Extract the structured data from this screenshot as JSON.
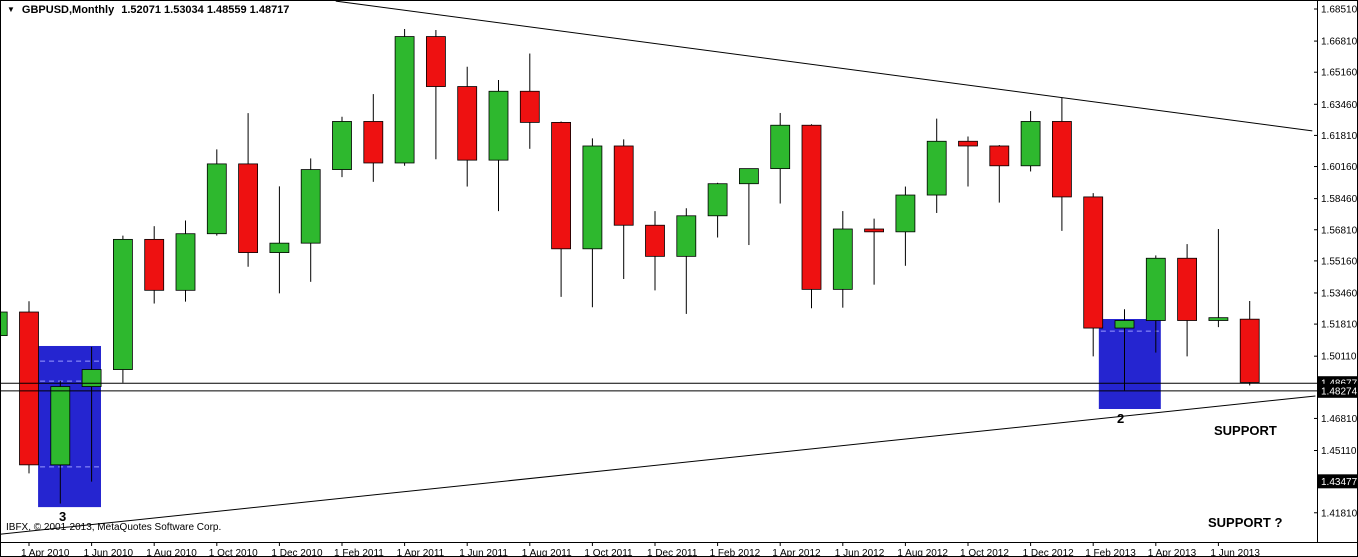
{
  "window": {
    "marker_glyph": "▼",
    "symbol": "GBPUSD,Monthly",
    "quote_ohlc": "1.52071 1.53034 1.48559 1.48717",
    "copyright": "IBFX, © 2001-2013, MetaQuotes Software Corp."
  },
  "chart_data": {
    "type": "candlestick",
    "symbol": "GBPUSD",
    "timeframe": "Monthly",
    "current_bar": {
      "open": 1.52071,
      "high": 1.53034,
      "low": 1.48559,
      "close": 1.48717
    },
    "colors": {
      "up": "#2eb82e",
      "down": "#ee1111",
      "box": "#2525d0",
      "box_dash": "#9b9bff",
      "wick": "#000000",
      "line": "#000000",
      "axis_text": "#000000",
      "tag_bg": "#000000",
      "tag_text": "#ffffff"
    },
    "candles": [
      {
        "month": "2010-03",
        "o": 1.512,
        "h": 1.528,
        "l": 1.508,
        "c": 1.5245
      },
      {
        "month": "2010-04",
        "o": 1.5245,
        "h": 1.5302,
        "l": 1.439,
        "c": 1.4435
      },
      {
        "month": "2010-05",
        "o": 1.4435,
        "h": 1.488,
        "l": 1.423,
        "c": 1.485
      },
      {
        "month": "2010-06",
        "o": 1.485,
        "h": 1.506,
        "l": 1.4346,
        "c": 1.494
      },
      {
        "month": "2010-07",
        "o": 1.494,
        "h": 1.565,
        "l": 1.487,
        "c": 1.563
      },
      {
        "month": "2010-08",
        "o": 1.563,
        "h": 1.57,
        "l": 1.529,
        "c": 1.536
      },
      {
        "month": "2010-09",
        "o": 1.536,
        "h": 1.573,
        "l": 1.53,
        "c": 1.566
      },
      {
        "month": "2010-10",
        "o": 1.566,
        "h": 1.6107,
        "l": 1.565,
        "c": 1.603
      },
      {
        "month": "2010-11",
        "o": 1.603,
        "h": 1.6299,
        "l": 1.5485,
        "c": 1.556
      },
      {
        "month": "2010-12",
        "o": 1.556,
        "h": 1.5911,
        "l": 1.5344,
        "c": 1.561
      },
      {
        "month": "2011-01",
        "o": 1.561,
        "h": 1.6059,
        "l": 1.5405,
        "c": 1.6
      },
      {
        "month": "2011-02",
        "o": 1.6,
        "h": 1.628,
        "l": 1.596,
        "c": 1.6255
      },
      {
        "month": "2011-03",
        "o": 1.6255,
        "h": 1.64,
        "l": 1.5935,
        "c": 1.6035
      },
      {
        "month": "2011-04",
        "o": 1.6035,
        "h": 1.6745,
        "l": 1.602,
        "c": 1.6705
      },
      {
        "month": "2011-05",
        "o": 1.6705,
        "h": 1.674,
        "l": 1.6055,
        "c": 1.644
      },
      {
        "month": "2011-06",
        "o": 1.644,
        "h": 1.6545,
        "l": 1.591,
        "c": 1.605
      },
      {
        "month": "2011-07",
        "o": 1.605,
        "h": 1.6475,
        "l": 1.578,
        "c": 1.6415
      },
      {
        "month": "2011-08",
        "o": 1.6415,
        "h": 1.6615,
        "l": 1.611,
        "c": 1.625
      },
      {
        "month": "2011-09",
        "o": 1.625,
        "h": 1.6255,
        "l": 1.5325,
        "c": 1.558
      },
      {
        "month": "2011-10",
        "o": 1.558,
        "h": 1.6165,
        "l": 1.527,
        "c": 1.6125
      },
      {
        "month": "2011-11",
        "o": 1.6125,
        "h": 1.616,
        "l": 1.542,
        "c": 1.5705
      },
      {
        "month": "2011-12",
        "o": 1.5705,
        "h": 1.578,
        "l": 1.536,
        "c": 1.554
      },
      {
        "month": "2012-01",
        "o": 1.554,
        "h": 1.5795,
        "l": 1.5235,
        "c": 1.5755
      },
      {
        "month": "2012-02",
        "o": 1.5755,
        "h": 1.593,
        "l": 1.564,
        "c": 1.5925
      },
      {
        "month": "2012-03",
        "o": 1.5925,
        "h": 1.6,
        "l": 1.56,
        "c": 1.6005
      },
      {
        "month": "2012-04",
        "o": 1.6005,
        "h": 1.63,
        "l": 1.582,
        "c": 1.6235
      },
      {
        "month": "2012-05",
        "o": 1.6235,
        "h": 1.624,
        "l": 1.5265,
        "c": 1.5365
      },
      {
        "month": "2012-06",
        "o": 1.5365,
        "h": 1.578,
        "l": 1.5268,
        "c": 1.5685
      },
      {
        "month": "2012-07",
        "o": 1.5685,
        "h": 1.574,
        "l": 1.539,
        "c": 1.567
      },
      {
        "month": "2012-08",
        "o": 1.567,
        "h": 1.591,
        "l": 1.549,
        "c": 1.5865
      },
      {
        "month": "2012-09",
        "o": 1.5865,
        "h": 1.627,
        "l": 1.577,
        "c": 1.615
      },
      {
        "month": "2012-10",
        "o": 1.615,
        "h": 1.6175,
        "l": 1.591,
        "c": 1.6125
      },
      {
        "month": "2012-11",
        "o": 1.6125,
        "h": 1.613,
        "l": 1.5825,
        "c": 1.602
      },
      {
        "month": "2012-12",
        "o": 1.602,
        "h": 1.631,
        "l": 1.599,
        "c": 1.6255
      },
      {
        "month": "2013-01",
        "o": 1.6255,
        "h": 1.638,
        "l": 1.5675,
        "c": 1.5855
      },
      {
        "month": "2013-02",
        "o": 1.5855,
        "h": 1.5875,
        "l": 1.501,
        "c": 1.516
      },
      {
        "month": "2013-03",
        "o": 1.516,
        "h": 1.526,
        "l": 1.483,
        "c": 1.52
      },
      {
        "month": "2013-04",
        "o": 1.52,
        "h": 1.5545,
        "l": 1.503,
        "c": 1.553
      },
      {
        "month": "2013-05",
        "o": 1.553,
        "h": 1.5605,
        "l": 1.501,
        "c": 1.52
      },
      {
        "month": "2013-06",
        "o": 1.52,
        "h": 1.5685,
        "l": 1.5165,
        "c": 1.5215
      },
      {
        "month": "2013-07",
        "o": 1.52071,
        "h": 1.53034,
        "l": 1.48559,
        "c": 1.48717
      }
    ],
    "y_axis": {
      "ticks": [
        {
          "label": "1.68510",
          "price": 1.6851
        },
        {
          "label": "1.66810",
          "price": 1.6681
        },
        {
          "label": "1.65160",
          "price": 1.6516
        },
        {
          "label": "1.63460",
          "price": 1.6346
        },
        {
          "label": "1.61810",
          "price": 1.6181
        },
        {
          "label": "1.60160",
          "price": 1.6016
        },
        {
          "label": "1.58460",
          "price": 1.5846
        },
        {
          "label": "1.56810",
          "price": 1.5681
        },
        {
          "label": "1.55160",
          "price": 1.5516
        },
        {
          "label": "1.53460",
          "price": 1.5346
        },
        {
          "label": "1.51810",
          "price": 1.5181
        },
        {
          "label": "1.50110",
          "price": 1.5011
        },
        {
          "label": "1.46810",
          "price": 1.4681
        },
        {
          "label": "1.45110",
          "price": 1.4511
        },
        {
          "label": "1.41810",
          "price": 1.4181
        }
      ],
      "boxed": [
        {
          "label": "1.48677",
          "price": 1.48677
        },
        {
          "label": "1.48274",
          "price": 1.48274
        },
        {
          "label": "1.43477",
          "price": 1.43477
        }
      ]
    },
    "x_axis": {
      "ticks": [
        {
          "label": "1 Apr 2010",
          "t": 1
        },
        {
          "label": "1 Jun 2010",
          "t": 3
        },
        {
          "label": "1 Aug 2010",
          "t": 5
        },
        {
          "label": "1 Oct 2010",
          "t": 7
        },
        {
          "label": "1 Dec 2010",
          "t": 9
        },
        {
          "label": "1 Feb 2011",
          "t": 11
        },
        {
          "label": "1 Apr 2011",
          "t": 13
        },
        {
          "label": "1 Jun 2011",
          "t": 15
        },
        {
          "label": "1 Aug 2011",
          "t": 17
        },
        {
          "label": "1 Oct 2011",
          "t": 19
        },
        {
          "label": "1 Dec 2011",
          "t": 21
        },
        {
          "label": "1 Feb 2012",
          "t": 23
        },
        {
          "label": "1 Apr 2012",
          "t": 25
        },
        {
          "label": "1 Jun 2012",
          "t": 27
        },
        {
          "label": "1 Aug 2012",
          "t": 29
        },
        {
          "label": "1 Oct 2012",
          "t": 31
        },
        {
          "label": "1 Dec 2012",
          "t": 33
        },
        {
          "label": "1 Feb 2013",
          "t": 35
        },
        {
          "label": "1 Apr 2013",
          "t": 37
        },
        {
          "label": "1 Jun 2013",
          "t": 39
        }
      ]
    },
    "trendlines": [
      {
        "name": "descending-resistance",
        "t1": 10.8,
        "p1": 1.6893,
        "t2": 42.0,
        "p2": 1.6205
      },
      {
        "name": "ascending-support",
        "t1": 0.1,
        "p1": 1.4068,
        "t2": 42.1,
        "p2": 1.48
      }
    ],
    "hlines": [
      {
        "label": "1.48677",
        "price": 1.48677
      },
      {
        "label": "1.48274",
        "price": 1.48274
      }
    ],
    "boxes": [
      {
        "label": "3",
        "t1": 1.29,
        "t2": 3.3,
        "p1": 1.5065,
        "p2": 1.4211,
        "dashes": [
          1.4985,
          1.4879,
          1.4424
        ]
      },
      {
        "label": "2",
        "t1": 35.18,
        "t2": 37.16,
        "p1": 1.5208,
        "p2": 1.4731,
        "dashes": [
          1.5144
        ]
      }
    ],
    "annotations": {
      "support": "SUPPORT",
      "support_question": "SUPPORT ?",
      "box_2_label": "2",
      "box_3_label": "3"
    }
  }
}
